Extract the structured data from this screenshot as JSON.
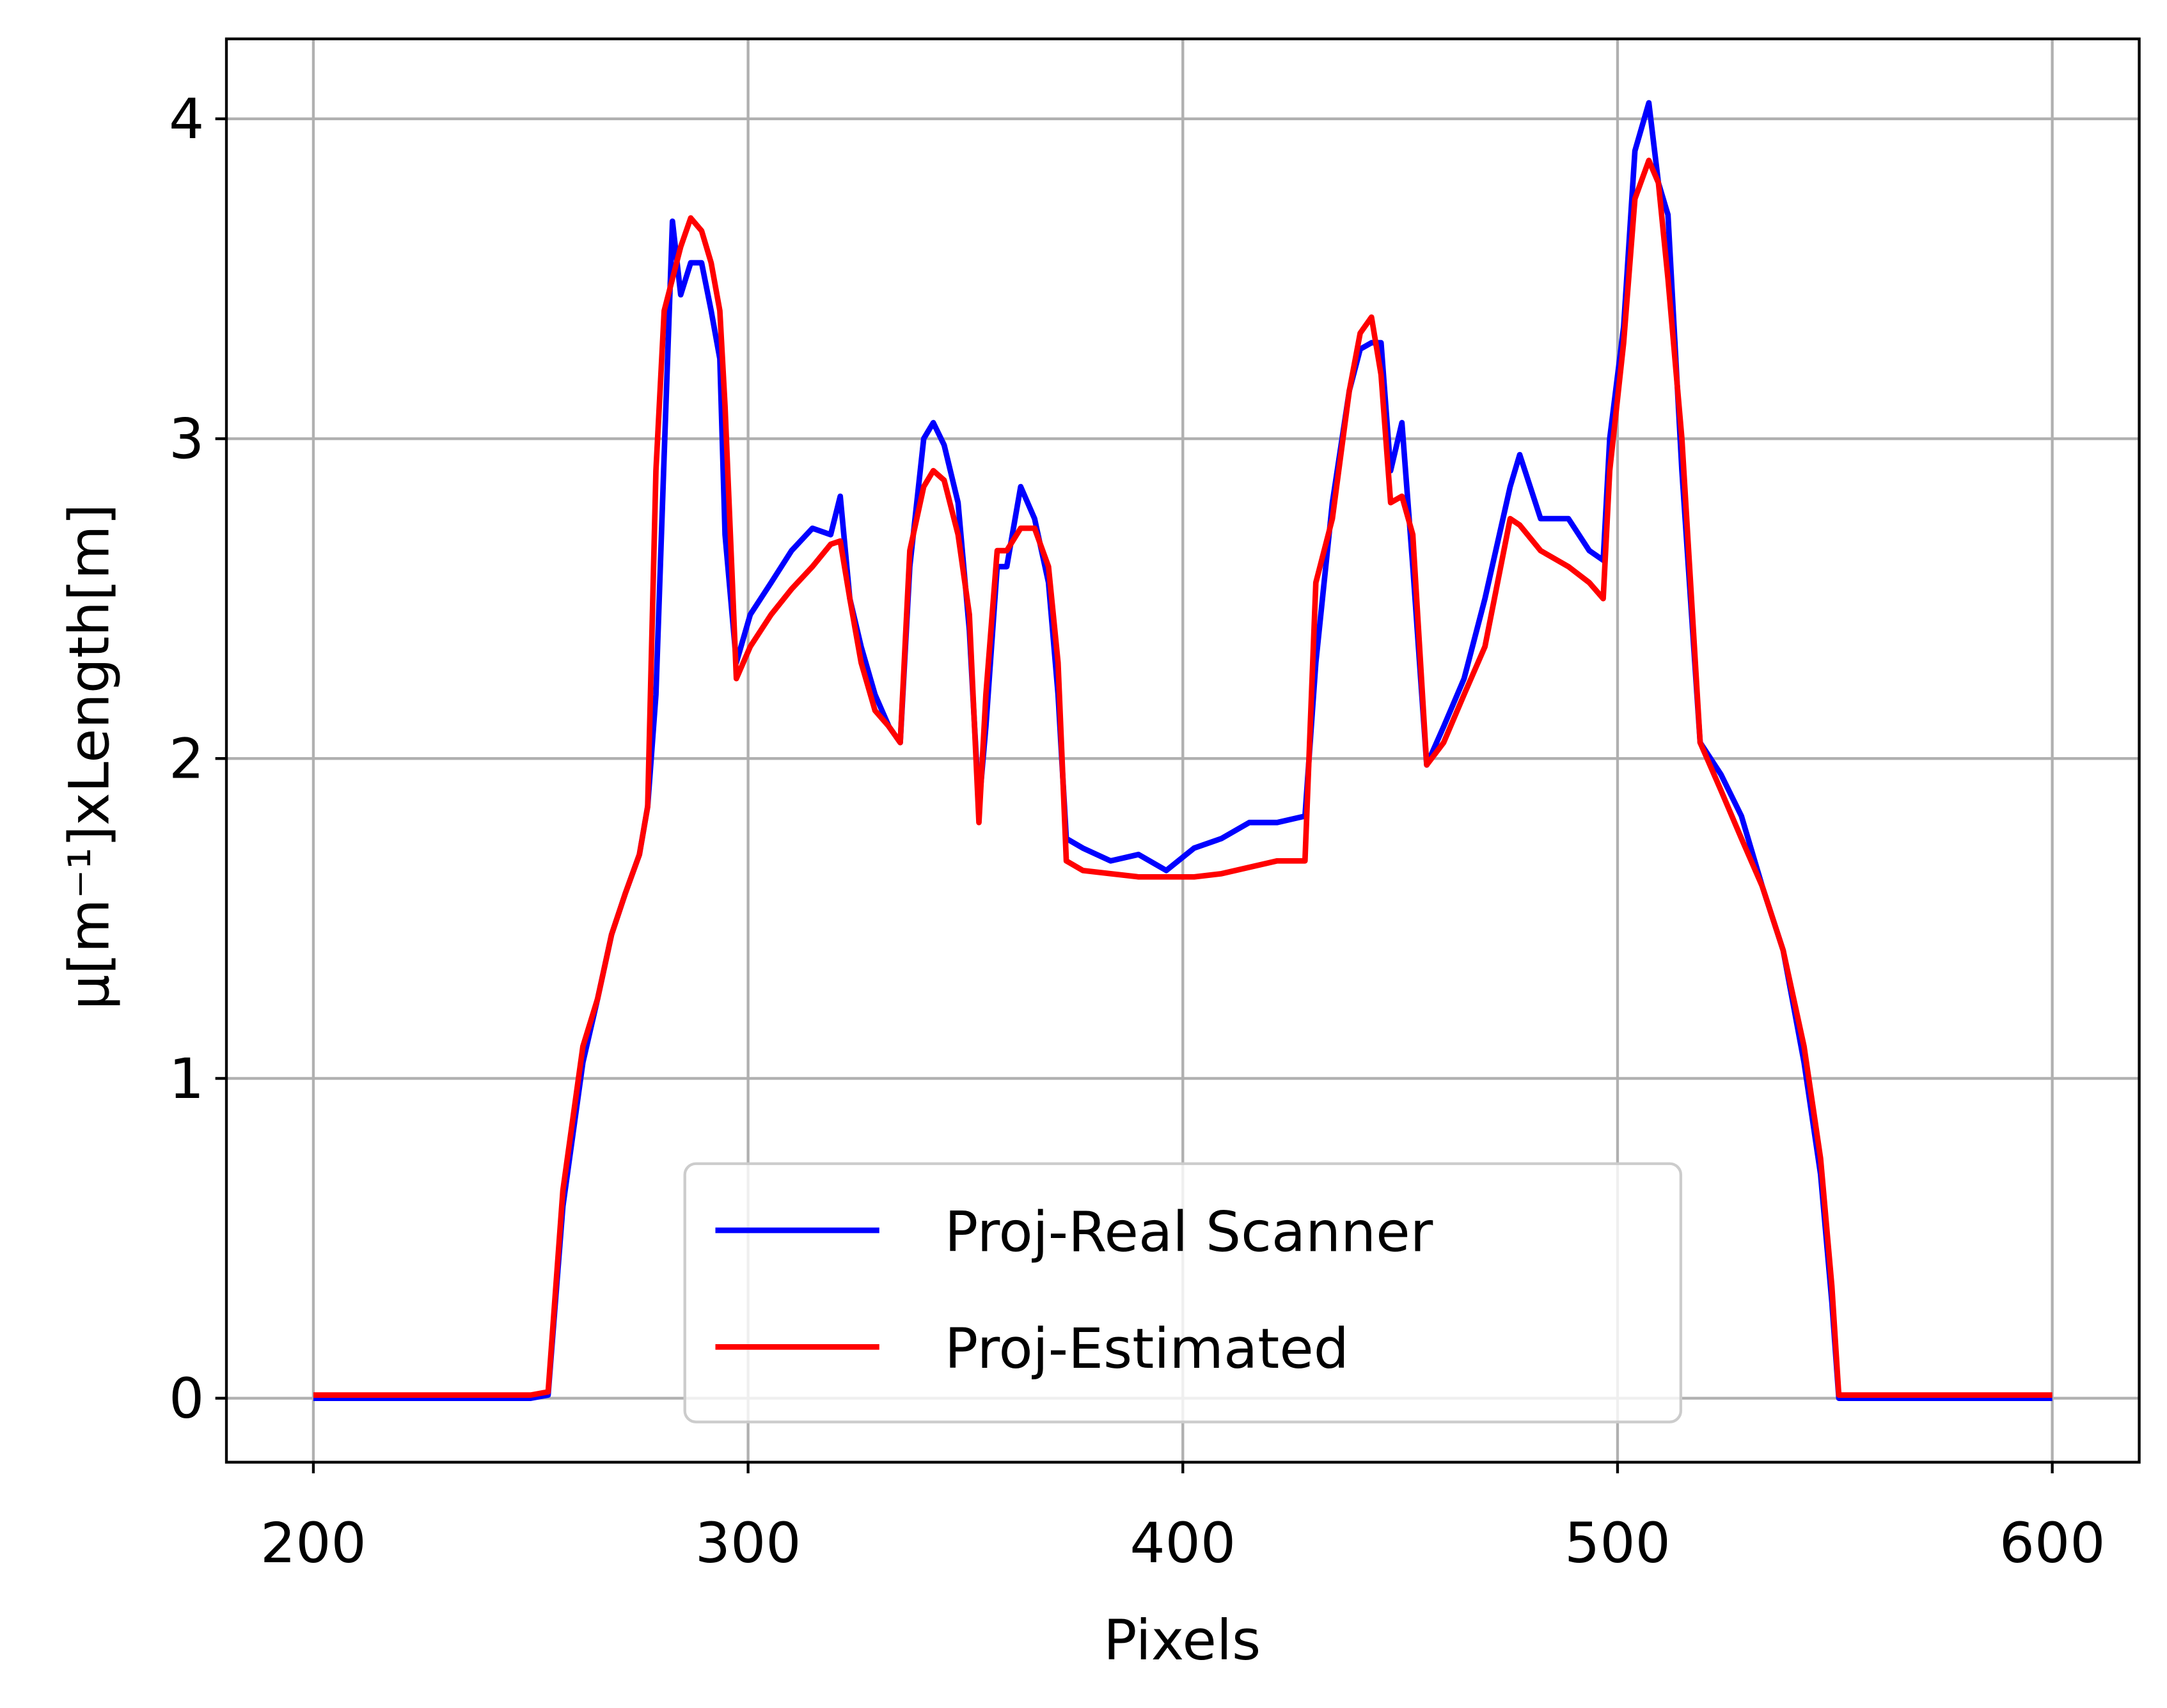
{
  "chart_data": {
    "type": "line",
    "xlabel": "Pixels",
    "ylabel": "μ[m⁻¹]xLength[m]",
    "xlim": [
      180,
      620
    ],
    "ylim": [
      -0.2,
      4.25
    ],
    "xticks": [
      200,
      300,
      400,
      500,
      600
    ],
    "yticks": [
      0,
      1,
      2,
      3,
      4
    ],
    "grid": true,
    "legend": "lower center",
    "x": [
      200,
      250,
      254,
      257.4,
      262,
      265.4,
      268.6,
      271.8,
      275,
      276.9,
      278.8,
      280.7,
      282.6,
      284.5,
      286.8,
      289.3,
      291.5,
      293.5,
      294.7,
      297.3,
      300.5,
      305.3,
      310,
      314.8,
      319,
      321.2,
      323.4,
      326,
      329.2,
      332.4,
      335,
      337.2,
      340.4,
      342.6,
      345.1,
      348.3,
      350.9,
      353.1,
      354.7,
      357.3,
      359.5,
      362.7,
      365.9,
      369.1,
      371.3,
      373.2,
      377,
      383.4,
      389.8,
      396.2,
      402.6,
      408.9,
      415.3,
      421.7,
      428.1,
      430.6,
      434.4,
      438.3,
      440.8,
      443.4,
      445.6,
      447.8,
      450.4,
      452.9,
      456.1,
      460,
      464.7,
      469.5,
      475.3,
      477.5,
      482.3,
      488.7,
      493.5,
      496.7,
      498.2,
      501.4,
      504,
      507.2,
      509.4,
      511.6,
      514.8,
      519,
      523.8,
      528.5,
      533.3,
      538.1,
      542.9,
      546.7,
      549.3,
      550.9,
      600
    ],
    "series": [
      {
        "name": "Proj-Real Scanner",
        "color": "#0000ff",
        "values": [
          0,
          0,
          0.01,
          0.6,
          1.05,
          1.25,
          1.45,
          1.58,
          1.7,
          1.85,
          2.2,
          2.95,
          3.68,
          3.45,
          3.55,
          3.55,
          3.4,
          3.25,
          2.7,
          2.3,
          2.45,
          2.55,
          2.65,
          2.72,
          2.7,
          2.82,
          2.5,
          2.35,
          2.2,
          2.1,
          2.05,
          2.6,
          3.0,
          3.05,
          2.98,
          2.8,
          2.4,
          1.85,
          2.1,
          2.6,
          2.6,
          2.85,
          2.75,
          2.55,
          2.2,
          1.75,
          1.72,
          1.68,
          1.7,
          1.65,
          1.72,
          1.75,
          1.8,
          1.8,
          1.82,
          2.3,
          2.8,
          3.15,
          3.28,
          3.3,
          3.3,
          2.9,
          3.05,
          2.6,
          1.98,
          2.1,
          2.25,
          2.5,
          2.85,
          2.95,
          2.75,
          2.75,
          2.65,
          2.62,
          3.0,
          3.35,
          3.9,
          4.05,
          3.8,
          3.7,
          2.9,
          2.05,
          1.95,
          1.82,
          1.6,
          1.4,
          1.05,
          0.7,
          0.3,
          0,
          0
        ]
      },
      {
        "name": "Proj-Estimated",
        "color": "#ff0000",
        "values": [
          0.01,
          0.01,
          0.02,
          0.65,
          1.1,
          1.25,
          1.45,
          1.58,
          1.7,
          1.85,
          2.9,
          3.4,
          3.5,
          3.6,
          3.69,
          3.65,
          3.55,
          3.4,
          3.1,
          2.25,
          2.35,
          2.45,
          2.53,
          2.6,
          2.67,
          2.68,
          2.5,
          2.3,
          2.15,
          2.1,
          2.05,
          2.65,
          2.85,
          2.9,
          2.87,
          2.7,
          2.45,
          1.8,
          2.2,
          2.65,
          2.65,
          2.72,
          2.72,
          2.6,
          2.3,
          1.68,
          1.65,
          1.64,
          1.63,
          1.63,
          1.63,
          1.64,
          1.66,
          1.68,
          1.68,
          2.55,
          2.75,
          3.15,
          3.33,
          3.38,
          3.2,
          2.8,
          2.82,
          2.7,
          1.98,
          2.05,
          2.2,
          2.35,
          2.75,
          2.73,
          2.65,
          2.6,
          2.55,
          2.5,
          2.9,
          3.3,
          3.75,
          3.87,
          3.8,
          3.5,
          3.0,
          2.05,
          1.9,
          1.75,
          1.6,
          1.4,
          1.1,
          0.75,
          0.35,
          0.01,
          0.01
        ]
      }
    ]
  }
}
